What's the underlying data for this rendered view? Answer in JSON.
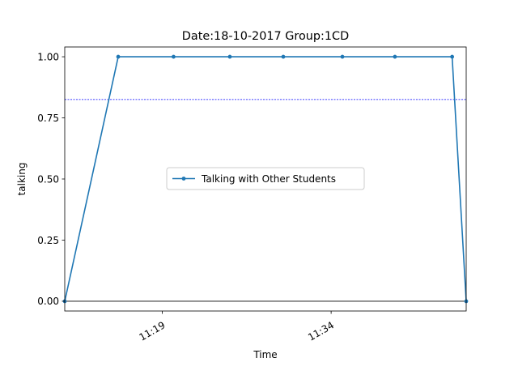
{
  "chart_data": {
    "type": "line",
    "title": "Date:18-10-2017  Group:1CD",
    "xlabel": "Time",
    "ylabel": "talking",
    "x_ticks": [
      "11:19",
      "11:34"
    ],
    "y_ticks": [
      "0.00",
      "0.25",
      "0.50",
      "0.75",
      "1.00"
    ],
    "ylim": [
      -0.04,
      1.04
    ],
    "grid": false,
    "legend_position": "center",
    "series": [
      {
        "name": "Talking with Other Students",
        "color": "#1f77b4",
        "points": [
          {
            "x": "11:10:20",
            "y": 0
          },
          {
            "x": "11:15:05",
            "y": 1
          },
          {
            "x": "11:20:00",
            "y": 1
          },
          {
            "x": "11:25:00",
            "y": 1
          },
          {
            "x": "11:29:45",
            "y": 1
          },
          {
            "x": "11:35:00",
            "y": 1
          },
          {
            "x": "11:39:40",
            "y": 1
          },
          {
            "x": "11:44:45",
            "y": 1
          },
          {
            "x": "11:46:00",
            "y": 0
          }
        ]
      }
    ],
    "reference_lines": [
      {
        "orientation": "horizontal",
        "y": 0.825,
        "color": "#0000ff",
        "style": "dotted"
      },
      {
        "orientation": "horizontal",
        "y": 0,
        "color": "#000000",
        "style": "solid"
      }
    ]
  }
}
